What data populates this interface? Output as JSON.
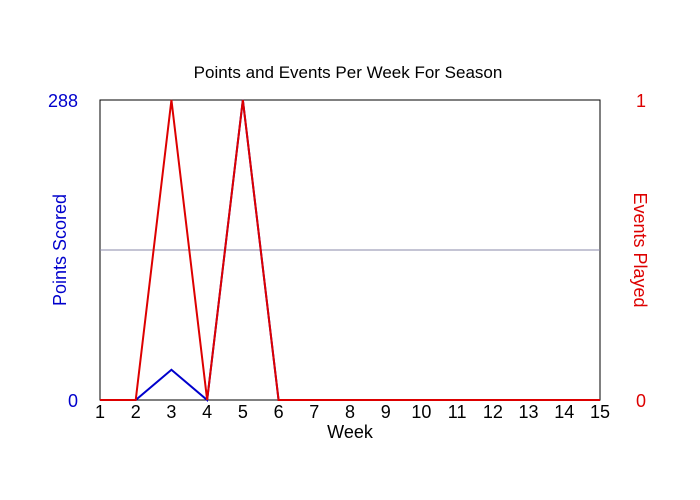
{
  "chart_data": {
    "type": "line",
    "title": "Points and Events Per Week For Season",
    "xlabel": "Week",
    "ylabel_left": "Points Scored",
    "ylabel_right": "Events Played",
    "x": [
      1,
      2,
      3,
      4,
      5,
      6,
      7,
      8,
      9,
      10,
      11,
      12,
      13,
      14,
      15
    ],
    "xlim": [
      1,
      15
    ],
    "ylim_left": [
      0,
      288
    ],
    "ylim_right": [
      0,
      1
    ],
    "left_ticks": [
      "0",
      "288"
    ],
    "right_ticks": [
      "0",
      "1"
    ],
    "gridline_left_value": 144,
    "series": [
      {
        "axis": "left",
        "color": "#0000cc",
        "values": [
          0,
          0,
          29,
          0,
          288,
          0,
          0,
          0,
          0,
          0,
          0,
          0,
          0,
          0,
          0
        ]
      },
      {
        "axis": "right",
        "color": "#dd0000",
        "values": [
          0,
          0,
          1,
          0,
          1,
          0,
          0,
          0,
          0,
          0,
          0,
          0,
          0,
          0,
          0
        ]
      }
    ],
    "colors": {
      "left_axis": "#0000cc",
      "right_axis": "#dd0000",
      "gridline": "#8888aa"
    }
  }
}
